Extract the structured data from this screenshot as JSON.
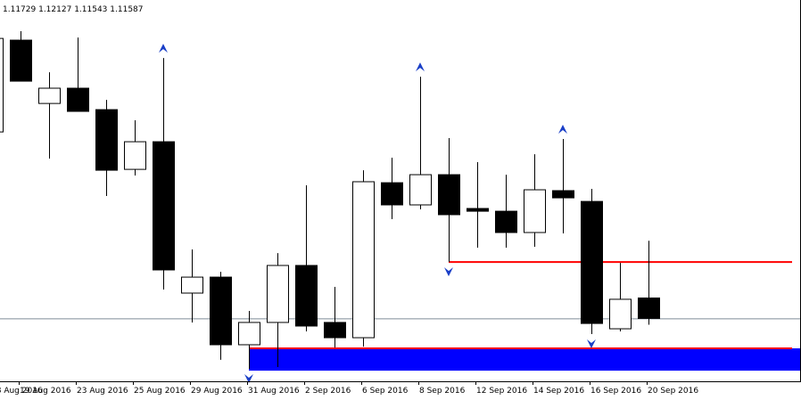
{
  "chart_data": {
    "type": "candlestick",
    "categories": [
      "18 Aug 2016",
      "19 Aug 2016",
      null,
      "23 Aug 2016",
      null,
      "25 Aug 2016",
      null,
      "29 Aug 2016",
      null,
      "31 Aug 2016",
      null,
      "2 Sep 2016",
      null,
      "6 Sep 2016",
      null,
      "8 Sep 2016",
      null,
      "12 Sep 2016",
      null,
      "14 Sep 2016",
      null,
      "16 Sep 2016",
      null,
      "20 Sep 2016"
    ],
    "open": [
      1.12883,
      1.13521,
      1.13081,
      1.13187,
      1.13038,
      1.12623,
      1.12815,
      1.11763,
      1.11874,
      1.11404,
      1.11559,
      1.11955,
      1.11559,
      1.11453,
      1.1253,
      1.12376,
      1.12586,
      1.12351,
      1.12332,
      1.12184,
      1.12475,
      1.124,
      1.11515,
      1.11729
    ],
    "high": [
      1.13564,
      1.13583,
      1.13298,
      1.13539,
      1.13106,
      1.12964,
      1.13397,
      1.12066,
      1.11911,
      1.11639,
      1.12041,
      1.12512,
      1.11806,
      1.12617,
      1.12704,
      1.13267,
      1.1284,
      1.12673,
      1.12586,
      1.12728,
      1.12834,
      1.12487,
      1.11973,
      1.12127
    ],
    "low": [
      1.12871,
      1.13236,
      1.12698,
      1.13026,
      1.12438,
      1.1258,
      1.11788,
      1.11559,
      1.11299,
      1.11237,
      1.11249,
      1.11497,
      1.11385,
      1.11391,
      1.12277,
      1.12345,
      1.11979,
      1.12079,
      1.12079,
      1.12085,
      1.12178,
      1.11478,
      1.11497,
      1.11543
    ],
    "close": [
      1.13533,
      1.13236,
      1.13187,
      1.13026,
      1.12617,
      1.12815,
      1.11924,
      1.11874,
      1.11404,
      1.11559,
      1.11955,
      1.11534,
      1.11453,
      1.12537,
      1.12376,
      1.12586,
      1.12308,
      1.12332,
      1.12184,
      1.12481,
      1.12425,
      1.11552,
      1.1172,
      1.11587
    ],
    "up_color": "#ffffff",
    "down_color": "#000000",
    "wick_color": "#000000",
    "ylim": [
      1.1115,
      1.138
    ],
    "price_line_color": "#7f8c99",
    "fractals_up": [
      6,
      15,
      20
    ],
    "fractals_down": [
      9,
      16,
      21
    ],
    "fractal_color": "#1a3fc7",
    "rectangle": {
      "start": 9,
      "top": 1.11379,
      "bottom": 1.11224,
      "color": "#0000ff"
    },
    "hlines": [
      {
        "value": 1.11979,
        "start": 16,
        "color": "#ff0000"
      },
      {
        "value": 1.11379,
        "start": 9,
        "color": "#ff0000"
      }
    ]
  }
}
